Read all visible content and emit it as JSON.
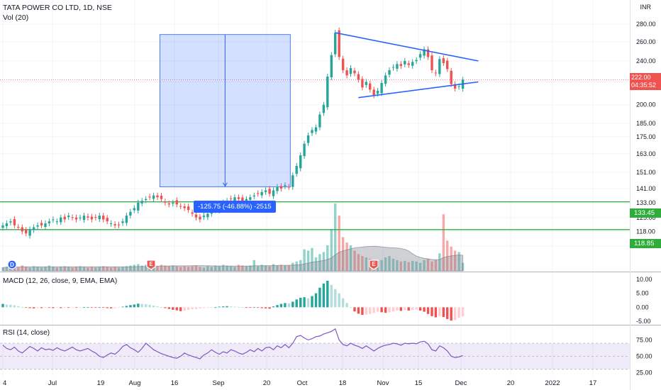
{
  "header": {
    "symbol_title": "TATA POWER CO LTD, 1D, NSE",
    "volume_label": "Vol (20)",
    "currency": "INR"
  },
  "price_badge": {
    "price": "222.00",
    "countdown": "04:35:52"
  },
  "levels": {
    "upper": "133.45",
    "lower": "118.85"
  },
  "measure_label": "-125.75 (-46.88%) -2515",
  "macd_label": "MACD (12, 26, close, 9, EMA, EMA)",
  "rsi_label": "RSI (14, close)",
  "event_markers": [
    "D",
    "E",
    "E"
  ],
  "colors": {
    "up": "#26a69a",
    "down": "#ef5350",
    "level": "#2fad3a",
    "trend": "#2962ff",
    "rsi_band": "#7e57c2"
  },
  "chart_data": [
    {
      "type": "candlestick",
      "title": "TATA POWER CO LTD, 1D, NSE",
      "y_scale": "log",
      "ylim": [
        104,
        290
      ],
      "y_ticks": [
        111.0,
        118.0,
        125.0,
        133.0,
        141.0,
        151.0,
        163.0,
        175.0,
        185.0,
        200.0,
        220.0,
        240.0,
        260.0,
        280.0
      ],
      "x_tick_labels": [
        "4",
        "Jul",
        "19",
        "Aug",
        "16",
        "Sep",
        "20",
        "Oct",
        "18",
        "Nov",
        "15",
        "Dec",
        "20",
        "2022",
        "17"
      ],
      "closes": [
        121,
        122,
        123,
        121,
        120,
        118,
        117,
        119,
        120,
        121,
        121,
        122,
        123,
        124,
        123,
        125,
        124,
        126,
        125,
        124,
        125,
        126,
        125,
        124,
        125,
        126,
        124,
        123,
        122,
        121,
        121,
        123,
        126,
        128,
        130,
        133,
        134,
        135,
        136,
        137,
        136,
        135,
        133,
        132,
        133,
        132,
        131,
        130,
        129,
        127,
        125,
        124,
        126,
        127,
        128,
        130,
        132,
        133,
        134,
        135,
        136,
        135,
        134,
        135,
        136,
        137,
        138,
        139,
        140,
        138,
        140,
        142,
        141,
        143,
        142,
        149,
        155,
        162,
        170,
        176,
        180,
        182,
        192,
        200,
        225,
        246,
        270,
        244,
        231,
        226,
        233,
        228,
        222,
        215,
        220,
        213,
        208,
        212,
        219,
        226,
        231,
        234,
        237,
        235,
        240,
        236,
        239,
        241,
        247,
        252,
        244,
        231,
        228,
        242,
        238,
        232,
        218,
        214,
        216,
        222
      ],
      "current_price": 222.0,
      "horizontal_levels": [
        133.45,
        118.85
      ],
      "trendlines": [
        {
          "name": "upper",
          "from": [
            86,
            270
          ],
          "to": [
            123,
            240
          ]
        },
        {
          "name": "lower",
          "from": [
            92,
            206
          ],
          "to": [
            123,
            220
          ]
        }
      ],
      "measure": {
        "from_bar": 41,
        "to_bar": 74,
        "from_price": 268,
        "to_price": 142,
        "label": "-125.75 (-46.88%) -2515"
      }
    },
    {
      "type": "bar",
      "title": "Vol (20)",
      "values": [
        5,
        6,
        6,
        7,
        5,
        8,
        6,
        5,
        7,
        6,
        5,
        6,
        8,
        6,
        5,
        6,
        7,
        6,
        5,
        6,
        7,
        6,
        5,
        6,
        5,
        6,
        7,
        6,
        5,
        6,
        5,
        6,
        7,
        8,
        9,
        10,
        8,
        9,
        10,
        8,
        7,
        9,
        8,
        7,
        8,
        7,
        6,
        7,
        6,
        7,
        8,
        6,
        5,
        7,
        6,
        8,
        7,
        9,
        8,
        7,
        6,
        9,
        8,
        7,
        8,
        16,
        7,
        9,
        8,
        7,
        10,
        8,
        9,
        8,
        8,
        12,
        14,
        16,
        32,
        30,
        34,
        20,
        25,
        28,
        38,
        62,
        100,
        82,
        50,
        42,
        38,
        30,
        25,
        22,
        20,
        18,
        16,
        15,
        16,
        20,
        22,
        18,
        16,
        14,
        15,
        13,
        15,
        14,
        12,
        16,
        18,
        14,
        16,
        26,
        84,
        45,
        36,
        30,
        28,
        12
      ]
    },
    {
      "type": "bar",
      "title": "MACD (12, 26, close, 9, EMA, EMA)",
      "ylim": [
        -6,
        12
      ],
      "y_ticks": [
        -5.0,
        0.0,
        5.0,
        10.0
      ],
      "values": [
        1.2,
        1.0,
        0.9,
        0.7,
        0.4,
        0.1,
        -0.2,
        -0.3,
        -0.4,
        -0.3,
        -0.3,
        -0.2,
        -0.2,
        -0.3,
        -0.2,
        -0.3,
        -0.2,
        -0.2,
        -0.1,
        -0.2,
        -0.1,
        0.0,
        0.0,
        -0.1,
        -0.1,
        0.0,
        -0.2,
        -0.3,
        -0.4,
        -0.3,
        -0.2,
        0.2,
        0.5,
        0.8,
        1.0,
        1.3,
        1.2,
        1.1,
        0.9,
        0.6,
        0.3,
        0.0,
        -0.3,
        -0.6,
        -0.9,
        -1.1,
        -1.4,
        -1.2,
        -0.9,
        -0.7,
        -0.6,
        -0.4,
        -0.3,
        -0.2,
        -0.1,
        0.0,
        0.2,
        0.3,
        0.4,
        0.3,
        0.2,
        0.1,
        0.0,
        -0.1,
        -0.1,
        0.0,
        -0.2,
        -0.3,
        -0.4,
        -0.5,
        0.3,
        0.8,
        1.2,
        1.5,
        1.4,
        2.0,
        2.8,
        3.4,
        3.6,
        3.2,
        4.0,
        5.0,
        7.0,
        8.5,
        9.5,
        8.0,
        6.5,
        5.0,
        3.2,
        1.5,
        0.0,
        -1.5,
        -2.3,
        -2.7,
        -2.6,
        -2.4,
        -2.0,
        -1.6,
        -1.8,
        -2.0,
        -1.8,
        -1.5,
        -1.2,
        -1.3,
        -1.0,
        -1.2,
        -1.0,
        -0.8,
        -1.2,
        -1.6,
        -2.4,
        -3.2,
        -3.6,
        -3.2,
        -3.5,
        -4.2,
        -4.8,
        -4.6,
        -3.8,
        -3.2
      ]
    },
    {
      "type": "line",
      "title": "RSI (14, close)",
      "ylim": [
        20,
        95
      ],
      "y_ticks": [
        25.0,
        50.0,
        75.0
      ],
      "band": [
        30,
        70
      ],
      "midline": 50,
      "values": [
        67,
        62,
        60,
        64,
        58,
        55,
        60,
        65,
        62,
        58,
        63,
        60,
        61,
        59,
        63,
        60,
        58,
        61,
        64,
        60,
        58,
        60,
        62,
        58,
        55,
        50,
        48,
        52,
        55,
        53,
        58,
        65,
        68,
        63,
        60,
        56,
        62,
        70,
        65,
        60,
        57,
        54,
        52,
        50,
        48,
        47,
        50,
        55,
        52,
        50,
        48,
        46,
        52,
        55,
        60,
        56,
        53,
        57,
        55,
        60,
        58,
        55,
        53,
        56,
        60,
        57,
        62,
        58,
        63,
        64,
        60,
        66,
        63,
        68,
        63,
        70,
        80,
        82,
        78,
        75,
        77,
        80,
        81,
        84,
        86,
        88,
        92,
        75,
        68,
        66,
        70,
        67,
        65,
        62,
        66,
        62,
        58,
        62,
        65,
        67,
        68,
        70,
        69,
        67,
        70,
        69,
        70,
        69,
        72,
        73,
        69,
        60,
        58,
        66,
        63,
        58,
        50,
        48,
        49,
        51
      ]
    }
  ]
}
